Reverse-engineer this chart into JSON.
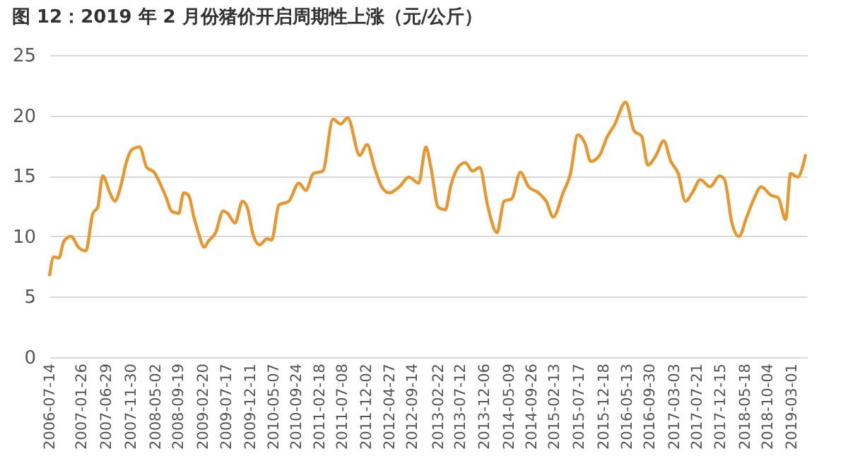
{
  "chart_data": {
    "type": "line",
    "title": "图 12：2019 年 2 月份猪价开启周期性上涨（元/公斤）",
    "x": [
      "2006-07-14",
      "2006-08-10",
      "2006-09-10",
      "2006-10-12",
      "2006-11-25",
      "2007-01-10",
      "2007-02-25",
      "2007-04-10",
      "2007-05-10",
      "2007-06-10",
      "2007-07-25",
      "2007-08-25",
      "2007-09-25",
      "2007-11-10",
      "2007-12-10",
      "2008-01-25",
      "2008-03-10",
      "2008-04-25",
      "2008-06-10",
      "2008-07-12",
      "2008-08-10",
      "2008-09-25",
      "2008-10-25",
      "2008-11-25",
      "2008-12-28",
      "2009-01-25",
      "2009-03-03",
      "2009-03-28",
      "2009-05-12",
      "2009-06-28",
      "2009-07-26",
      "2009-09-10",
      "2009-10-26",
      "2009-11-25",
      "2009-12-28",
      "2010-02-10",
      "2010-03-28",
      "2010-04-26",
      "2010-06-10",
      "2010-08-10",
      "2010-10-12",
      "2010-11-25",
      "2011-01-10",
      "2011-03-10",
      "2011-05-12",
      "2011-06-28",
      "2011-08-12",
      "2011-10-26",
      "2011-12-10",
      "2012-01-25",
      "2012-03-10",
      "2012-04-26",
      "2012-06-28",
      "2012-08-26",
      "2012-10-26",
      "2012-12-10",
      "2013-01-10",
      "2013-02-25",
      "2013-04-10",
      "2013-05-12",
      "2013-06-28",
      "2013-08-12",
      "2013-09-26",
      "2013-11-10",
      "2013-12-28",
      "2014-02-25",
      "2014-04-10",
      "2014-05-28",
      "2014-07-20",
      "2014-09-10",
      "2014-11-10",
      "2014-12-28",
      "2015-02-10",
      "2015-04-12",
      "2015-05-28",
      "2015-07-12",
      "2015-08-26",
      "2015-10-01",
      "2015-11-25",
      "2016-01-10",
      "2016-02-25",
      "2016-05-05",
      "2016-06-28",
      "2016-08-12",
      "2016-09-20",
      "2016-11-10",
      "2016-12-28",
      "2017-02-10",
      "2017-03-28",
      "2017-05-12",
      "2017-06-28",
      "2017-08-12",
      "2017-10-12",
      "2017-12-10",
      "2018-01-10",
      "2018-02-25",
      "2018-04-10",
      "2018-05-28",
      "2018-07-12",
      "2018-08-26",
      "2018-10-26",
      "2018-12-10",
      "2019-01-25",
      "2019-02-25",
      "2019-04-10",
      "2019-05-30"
    ],
    "series": [
      {
        "color": "#e8962e",
        "values": [
          6.7,
          8.3,
          8.2,
          9.6,
          10.0,
          9.1,
          8.8,
          11.9,
          12.4,
          15.0,
          13.6,
          12.9,
          13.9,
          16.4,
          17.2,
          17.4,
          15.7,
          15.3,
          14.1,
          13.1,
          12.1,
          11.9,
          13.6,
          13.4,
          11.6,
          10.3,
          9.1,
          9.6,
          10.3,
          12.1,
          11.9,
          11.1,
          12.9,
          12.4,
          10.3,
          9.3,
          9.8,
          9.7,
          12.6,
          12.9,
          14.4,
          13.8,
          15.2,
          15.4,
          19.7,
          19.3,
          19.8,
          16.7,
          17.6,
          15.7,
          14.1,
          13.6,
          14.1,
          14.9,
          14.4,
          17.4,
          15.7,
          12.4,
          12.2,
          14.1,
          15.7,
          16.1,
          15.4,
          15.7,
          12.6,
          10.3,
          12.9,
          13.1,
          15.3,
          14.1,
          13.6,
          12.9,
          11.6,
          13.6,
          15.2,
          18.4,
          17.7,
          16.2,
          16.7,
          18.2,
          19.2,
          21.1,
          18.7,
          18.3,
          15.9,
          16.7,
          17.9,
          16.2,
          15.2,
          12.9,
          13.7,
          14.7,
          14.1,
          15.0,
          14.7,
          11.1,
          10.0,
          11.6,
          13.1,
          14.1,
          13.4,
          13.2,
          11.4,
          15.2,
          14.9,
          16.8
        ]
      }
    ],
    "xlim": [
      "2006-07-14",
      "2019-06-07"
    ],
    "xticks": [
      "2006-07-14",
      "2007-01-26",
      "2007-06-29",
      "2007-11-30",
      "2008-05-02",
      "2008-09-19",
      "2009-02-20",
      "2009-07-17",
      "2009-12-11",
      "2010-05-07",
      "2010-09-24",
      "2011-02-18",
      "2011-07-08",
      "2011-12-02",
      "2012-04-27",
      "2012-09-14",
      "2013-02-22",
      "2013-07-12",
      "2013-12-06",
      "2014-05-09",
      "2014-09-26",
      "2015-02-13",
      "2015-07-17",
      "2015-12-18",
      "2016-05-13",
      "2016-09-30",
      "2017-03-03",
      "2017-07-21",
      "2017-12-15",
      "2018-05-18",
      "2018-10-04",
      "2019-03-01"
    ],
    "ylim": [
      0,
      25
    ],
    "yticks": [
      0,
      5,
      10,
      15,
      20,
      25
    ],
    "grid": "y"
  }
}
